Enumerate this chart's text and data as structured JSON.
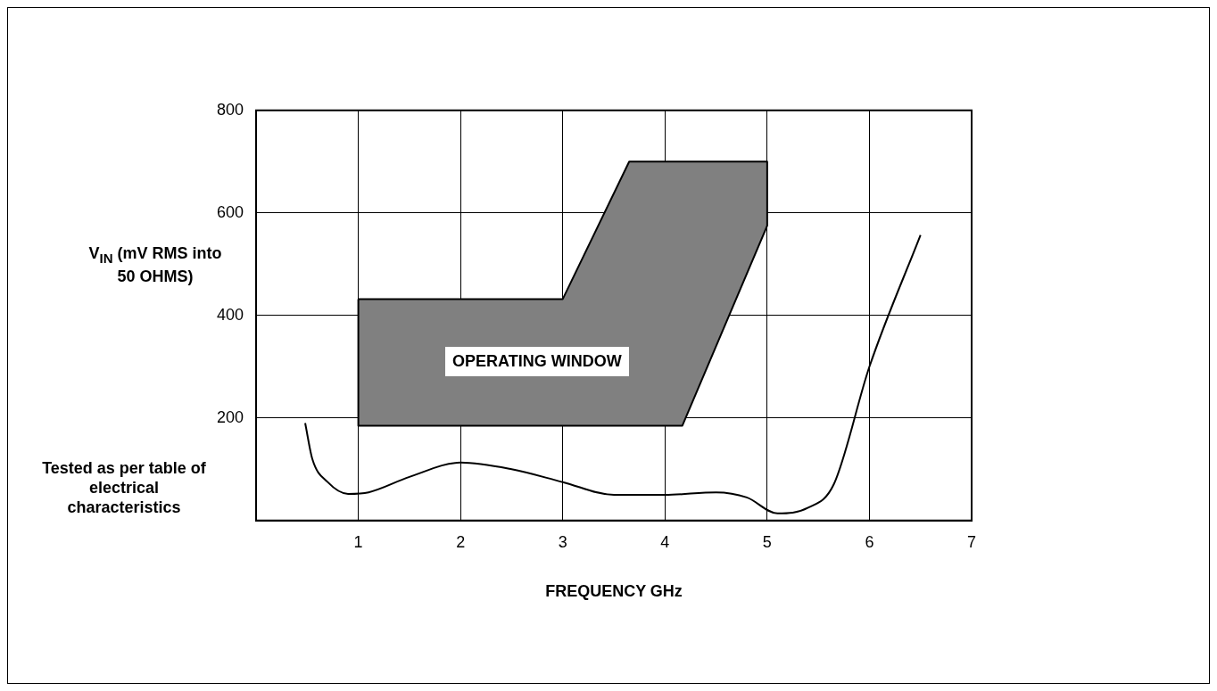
{
  "chart_data": {
    "type": "line",
    "xlabel": "FREQUENCY GHz",
    "ylabel": "V$_{IN}$ (mV RMS into 50 OHMS)",
    "xlim": [
      0,
      7
    ],
    "ylim": [
      0,
      800
    ],
    "xticks": [
      1,
      2,
      3,
      4,
      5,
      6,
      7
    ],
    "yticks": [
      200,
      400,
      600,
      800
    ],
    "grid": true,
    "marker": "none",
    "series": [
      {
        "type": "area",
        "color": "#808080",
        "x": [
          1,
          3,
          3.65,
          5,
          5,
          4.17,
          1,
          1
        ],
        "values": [
          432,
          432,
          700,
          700,
          575,
          185,
          185,
          432
        ]
      },
      {
        "type": "line",
        "color": "#000000",
        "x": [
          0.48,
          0.55,
          0.7,
          0.9,
          1.1,
          1.5,
          2.0,
          2.5,
          3.0,
          3.5,
          4.0,
          4.5,
          4.8,
          5.1,
          5.4,
          5.65,
          6.0,
          6.5
        ],
        "values": [
          190,
          120,
          75,
          52,
          55,
          85,
          113,
          100,
          75,
          50,
          50,
          55,
          45,
          14,
          25,
          70,
          300,
          557
        ]
      }
    ],
    "annotations": [
      "OPERATING WINDOW",
      "Tested as per table of electrical characteristics"
    ]
  }
}
